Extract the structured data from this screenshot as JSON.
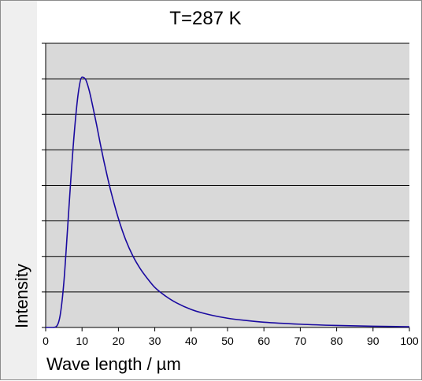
{
  "chart_data": {
    "type": "line",
    "title": "T=287 K",
    "xlabel": "Wave length / µm",
    "ylabel": "Intensity",
    "xlim": [
      0,
      100
    ],
    "ylim": [
      0,
      1
    ],
    "x_ticks": [
      "0",
      "10",
      "20",
      "30",
      "40",
      "50",
      "60",
      "70",
      "80",
      "90",
      "100"
    ],
    "y_gridlines": 8,
    "grid": true,
    "legend": "none",
    "plot_background": "#d9d9d9",
    "line_color": "#1a0aa0",
    "series": [
      {
        "x": [
          0,
          2,
          3,
          4,
          5,
          6,
          7,
          8,
          9,
          10,
          11,
          12,
          13,
          14,
          15,
          16,
          17,
          18,
          20,
          22,
          24,
          26,
          28,
          30,
          33,
          36,
          40,
          45,
          50,
          55,
          60,
          70,
          80,
          90,
          100
        ],
        "values": [
          0,
          0,
          0.005,
          0.05,
          0.18,
          0.39,
          0.61,
          0.8,
          0.94,
          1.0,
          0.99,
          0.945,
          0.88,
          0.81,
          0.735,
          0.665,
          0.6,
          0.54,
          0.435,
          0.35,
          0.285,
          0.235,
          0.195,
          0.16,
          0.125,
          0.098,
          0.072,
          0.051,
          0.037,
          0.028,
          0.021,
          0.013,
          0.008,
          0.005,
          0.003
        ]
      }
    ]
  }
}
